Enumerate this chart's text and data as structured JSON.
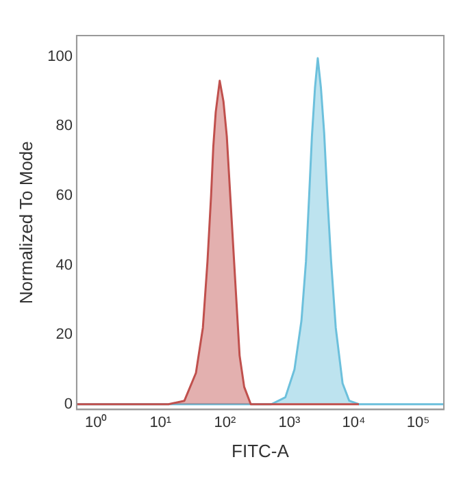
{
  "chart_data": {
    "type": "area",
    "xlabel": "FITC-A",
    "ylabel": "Normalized To Mode",
    "log": "x",
    "grid": false,
    "marker": "none",
    "xlim": [
      0.5,
      250000
    ],
    "xticks": [
      {
        "value": 1,
        "label": "10⁰"
      },
      {
        "value": 10,
        "label": "10¹"
      },
      {
        "value": 100,
        "label": "10²"
      },
      {
        "value": 1000,
        "label": "10³"
      },
      {
        "value": 10000,
        "label": "10⁴"
      },
      {
        "value": 100000,
        "label": "10⁵"
      }
    ],
    "ylim": [
      -1.5,
      106
    ],
    "yticks": [
      0,
      20,
      40,
      60,
      80,
      100
    ],
    "series": [
      {
        "color": "#c0504d",
        "x": [
          0.5,
          13.3,
          23.5,
          35.5,
          45.5,
          53.6,
          61,
          66,
          72,
          83,
          95,
          107,
          121,
          144,
          169,
          199,
          252,
          12000
        ],
        "values": [
          0,
          0,
          1,
          9,
          22,
          41,
          60,
          74,
          84,
          93,
          87,
          77,
          60,
          36,
          14,
          5,
          0,
          0
        ]
      },
      {
        "color": "#6cc0dc",
        "x": [
          0.5,
          525,
          867,
          1200,
          1540,
          1810,
          2030,
          2240,
          2500,
          2760,
          3090,
          3470,
          3880,
          4450,
          5250,
          6700,
          8500,
          12000,
          250000
        ],
        "values": [
          0,
          0,
          2,
          10,
          24,
          41,
          60,
          77,
          91,
          99.5,
          91,
          78,
          60,
          41,
          22,
          6,
          1,
          0,
          0
        ]
      }
    ]
  }
}
